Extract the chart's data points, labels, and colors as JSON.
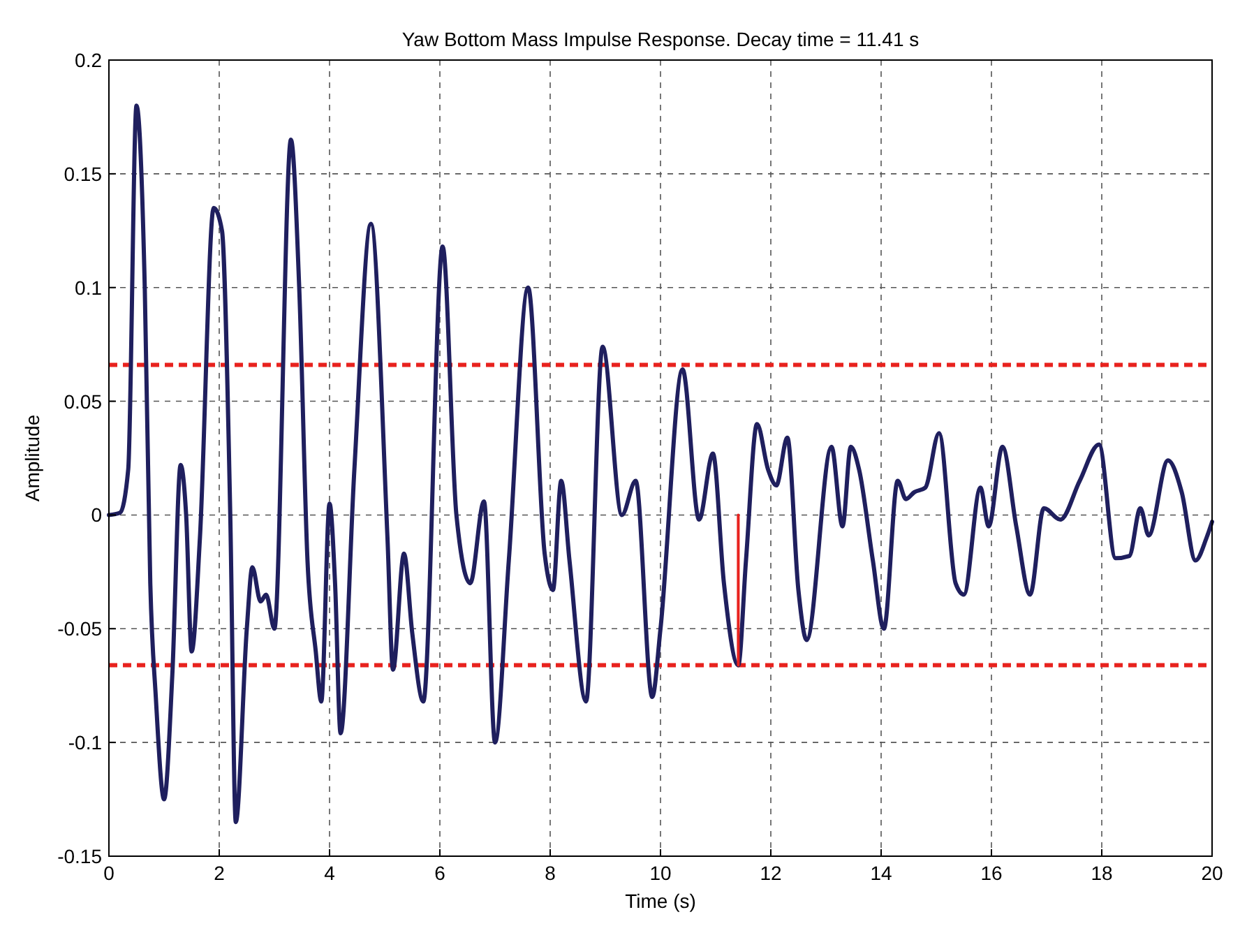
{
  "chart_data": {
    "type": "line",
    "title": "Yaw Bottom Mass Impulse Response. Decay time = 11.41 s",
    "xlabel": "Time (s)",
    "ylabel": "Amplitude",
    "xlim": [
      0,
      20
    ],
    "xticks": [
      0,
      2,
      4,
      6,
      8,
      10,
      12,
      14,
      16,
      18,
      20
    ],
    "ylim": [
      -0.15,
      0.2
    ],
    "yticks": [
      -0.15,
      -0.1,
      -0.05,
      0,
      0.05,
      0.1,
      0.15,
      0.2
    ],
    "grid": true,
    "line_style": "solid",
    "series": [
      {
        "color": "#1f1f5e",
        "x": [
          0,
          0.2,
          0.35,
          0.5,
          0.65,
          0.75,
          0.85,
          1.0,
          1.15,
          1.3,
          1.4,
          1.5,
          1.65,
          1.9,
          2.05,
          2.2,
          2.3,
          2.5,
          2.6,
          2.75,
          2.85,
          3.0,
          3.3,
          3.45,
          3.6,
          3.75,
          3.85,
          4.0,
          4.1,
          4.2,
          4.45,
          4.75,
          5.05,
          5.15,
          5.35,
          5.5,
          5.7,
          6.05,
          6.3,
          6.55,
          6.8,
          7.0,
          7.25,
          7.6,
          7.9,
          8.05,
          8.2,
          8.35,
          8.65,
          8.95,
          9.3,
          9.55,
          9.85,
          10.0,
          10.4,
          10.7,
          10.95,
          11.15,
          11.41,
          11.55,
          11.75,
          11.95,
          12.1,
          12.3,
          12.5,
          12.65,
          13.1,
          13.3,
          13.45,
          13.6,
          13.85,
          14.05,
          14.3,
          14.45,
          14.6,
          14.8,
          15.05,
          15.35,
          15.5,
          15.8,
          15.95,
          16.2,
          16.45,
          16.7,
          16.95,
          17.25,
          17.6,
          17.95,
          18.25,
          18.5,
          18.7,
          18.85,
          19.2,
          19.45,
          19.7,
          19.9,
          20.0
        ],
        "values": [
          0,
          0.001,
          0.02,
          0.18,
          0.1,
          -0.03,
          -0.08,
          -0.125,
          -0.07,
          0.022,
          0.0,
          -0.06,
          -0.01,
          0.135,
          0.125,
          0.0,
          -0.135,
          -0.05,
          -0.023,
          -0.038,
          -0.035,
          -0.05,
          0.165,
          0.1,
          -0.02,
          -0.06,
          -0.082,
          0.005,
          -0.03,
          -0.096,
          0.02,
          0.128,
          -0.01,
          -0.068,
          -0.017,
          -0.052,
          -0.082,
          0.118,
          0.0,
          -0.03,
          0.006,
          -0.1,
          -0.02,
          0.1,
          -0.017,
          -0.033,
          0.015,
          -0.02,
          -0.082,
          0.074,
          0.0,
          0.015,
          -0.08,
          -0.05,
          0.064,
          -0.002,
          0.027,
          -0.03,
          -0.066,
          -0.02,
          0.04,
          0.02,
          0.013,
          0.034,
          -0.033,
          -0.055,
          0.03,
          -0.005,
          0.03,
          0.02,
          -0.02,
          -0.05,
          0.015,
          0.007,
          0.01,
          0.012,
          0.036,
          -0.03,
          -0.035,
          0.012,
          -0.005,
          0.03,
          -0.005,
          -0.035,
          0.003,
          -0.002,
          0.015,
          0.031,
          -0.019,
          -0.018,
          0.003,
          -0.009,
          0.024,
          0.01,
          -0.02,
          -0.01,
          -0.003
        ]
      },
      {
        "color": "#e8221e",
        "x": [
          11.41,
          11.41
        ],
        "values": [
          0,
          -0.066
        ]
      }
    ],
    "ref_lines": [
      {
        "axis": "y",
        "value": 0.066,
        "color": "#e8221e",
        "line_style": "dashed"
      },
      {
        "axis": "y",
        "value": -0.066,
        "color": "#e8221e",
        "line_style": "dashed"
      }
    ]
  }
}
